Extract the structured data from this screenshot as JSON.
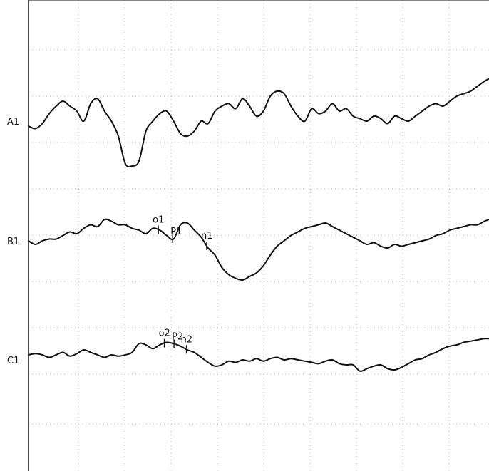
{
  "chart_data": {
    "type": "line",
    "title": "",
    "xlabel": "",
    "ylabel": "",
    "grid": true,
    "x_range": [
      0,
      100
    ],
    "y_unit_range": [
      -1,
      1
    ],
    "series": [
      {
        "name": "A1",
        "x": [
          0,
          1.5,
          3,
          4.5,
          6,
          7.5,
          9,
          10.5,
          12,
          13.5,
          15,
          16.5,
          18,
          19.5,
          21,
          22.5,
          24,
          25.5,
          27,
          28.5,
          30,
          31.5,
          33,
          34.5,
          36,
          37.5,
          39,
          40.5,
          42,
          43.5,
          45,
          46.5,
          48,
          49.5,
          51,
          52.5,
          54,
          55.5,
          57,
          58.5,
          60,
          61.5,
          63,
          64.5,
          66,
          67.5,
          69,
          70.5,
          72,
          73.5,
          75,
          76.5,
          78,
          79.5,
          81,
          82.5,
          84,
          85.5,
          87,
          88.5,
          90,
          91.5,
          93,
          94.5,
          96,
          97.5,
          99,
          100
        ],
        "values": [
          -0.1,
          -0.15,
          -0.05,
          0.15,
          0.3,
          0.4,
          0.3,
          0.2,
          0.0,
          0.35,
          0.45,
          0.2,
          0.0,
          -0.3,
          -0.85,
          -0.9,
          -0.8,
          -0.2,
          0.0,
          0.15,
          0.2,
          0.0,
          -0.25,
          -0.3,
          -0.2,
          0.0,
          -0.05,
          0.2,
          0.3,
          0.35,
          0.25,
          0.45,
          0.3,
          0.1,
          0.2,
          0.5,
          0.6,
          0.55,
          0.3,
          0.1,
          0.0,
          0.25,
          0.15,
          0.2,
          0.35,
          0.2,
          0.25,
          0.1,
          0.05,
          0.0,
          0.1,
          0.05,
          -0.05,
          0.1,
          0.05,
          0.0,
          0.1,
          0.2,
          0.3,
          0.35,
          0.3,
          0.4,
          0.5,
          0.55,
          0.6,
          0.7,
          0.8,
          0.85
        ]
      },
      {
        "name": "B1",
        "x": [
          0,
          1.5,
          3,
          4.5,
          6,
          7.5,
          9,
          10.5,
          12,
          13.5,
          15,
          16.5,
          18,
          19.5,
          21,
          22.5,
          24,
          25.5,
          27,
          28.5,
          30,
          31.5,
          33,
          34.5,
          36,
          37.5,
          39,
          40.5,
          42,
          43.5,
          45,
          46.5,
          48,
          49.5,
          51,
          52.5,
          54,
          55.5,
          57,
          58.5,
          60,
          61.5,
          63,
          64.5,
          66,
          67.5,
          69,
          70.5,
          72,
          73.5,
          75,
          76.5,
          78,
          79.5,
          81,
          82.5,
          84,
          85.5,
          87,
          88.5,
          90,
          91.5,
          93,
          94.5,
          96,
          97.5,
          99,
          100
        ],
        "values": [
          0.0,
          -0.1,
          0.0,
          0.05,
          0.05,
          0.15,
          0.25,
          0.2,
          0.35,
          0.45,
          0.4,
          0.6,
          0.55,
          0.45,
          0.45,
          0.35,
          0.3,
          0.2,
          0.35,
          0.3,
          0.15,
          0.05,
          0.45,
          0.5,
          0.3,
          0.1,
          -0.2,
          -0.4,
          -0.75,
          -0.95,
          -1.05,
          -1.1,
          -1.0,
          -0.9,
          -0.7,
          -0.4,
          -0.15,
          0.0,
          0.15,
          0.25,
          0.35,
          0.4,
          0.45,
          0.5,
          0.4,
          0.3,
          0.2,
          0.1,
          0.0,
          -0.1,
          -0.05,
          -0.15,
          -0.2,
          -0.1,
          -0.15,
          -0.1,
          -0.05,
          0.0,
          0.05,
          0.15,
          0.2,
          0.3,
          0.35,
          0.4,
          0.45,
          0.45,
          0.55,
          0.6
        ]
      },
      {
        "name": "C1",
        "x": [
          0,
          1.5,
          3,
          4.5,
          6,
          7.5,
          9,
          10.5,
          12,
          13.5,
          15,
          16.5,
          18,
          19.5,
          21,
          22.5,
          24,
          25.5,
          27,
          28.5,
          30,
          31.5,
          33,
          34.5,
          36,
          37.5,
          39,
          40.5,
          42,
          43.5,
          45,
          46.5,
          48,
          49.5,
          51,
          52.5,
          54,
          55.5,
          57,
          58.5,
          60,
          61.5,
          63,
          64.5,
          66,
          67.5,
          69,
          70.5,
          72,
          73.5,
          75,
          76.5,
          78,
          79.5,
          81,
          82.5,
          84,
          85.5,
          87,
          88.5,
          90,
          91.5,
          93,
          94.5,
          96,
          97.5,
          99,
          100
        ],
        "values": [
          0.2,
          0.25,
          0.2,
          0.1,
          0.2,
          0.3,
          0.15,
          0.25,
          0.4,
          0.3,
          0.2,
          0.1,
          0.2,
          0.15,
          0.2,
          0.3,
          0.65,
          0.6,
          0.45,
          0.6,
          0.7,
          0.65,
          0.55,
          0.4,
          0.3,
          0.1,
          -0.1,
          -0.25,
          -0.2,
          -0.05,
          -0.1,
          0.0,
          -0.05,
          0.05,
          -0.05,
          0.05,
          0.1,
          0.0,
          0.05,
          0.0,
          -0.05,
          -0.1,
          -0.15,
          -0.05,
          0.0,
          -0.15,
          -0.2,
          -0.2,
          -0.45,
          -0.35,
          -0.25,
          -0.2,
          -0.35,
          -0.4,
          -0.3,
          -0.15,
          0.0,
          0.05,
          0.2,
          0.3,
          0.45,
          0.55,
          0.6,
          0.7,
          0.75,
          0.8,
          0.85,
          0.85
        ]
      }
    ],
    "markers": [
      {
        "series": "B1",
        "x": 28.2,
        "label": "o1"
      },
      {
        "series": "B1",
        "x": 31.3,
        "label": "P1"
      },
      {
        "series": "B1",
        "x": 38.7,
        "label": "n1"
      },
      {
        "series": "C1",
        "x": 29.5,
        "label": "o2"
      },
      {
        "series": "C1",
        "x": 31.6,
        "label": "P2"
      },
      {
        "series": "C1",
        "x": 34.3,
        "label": "n2"
      }
    ]
  }
}
